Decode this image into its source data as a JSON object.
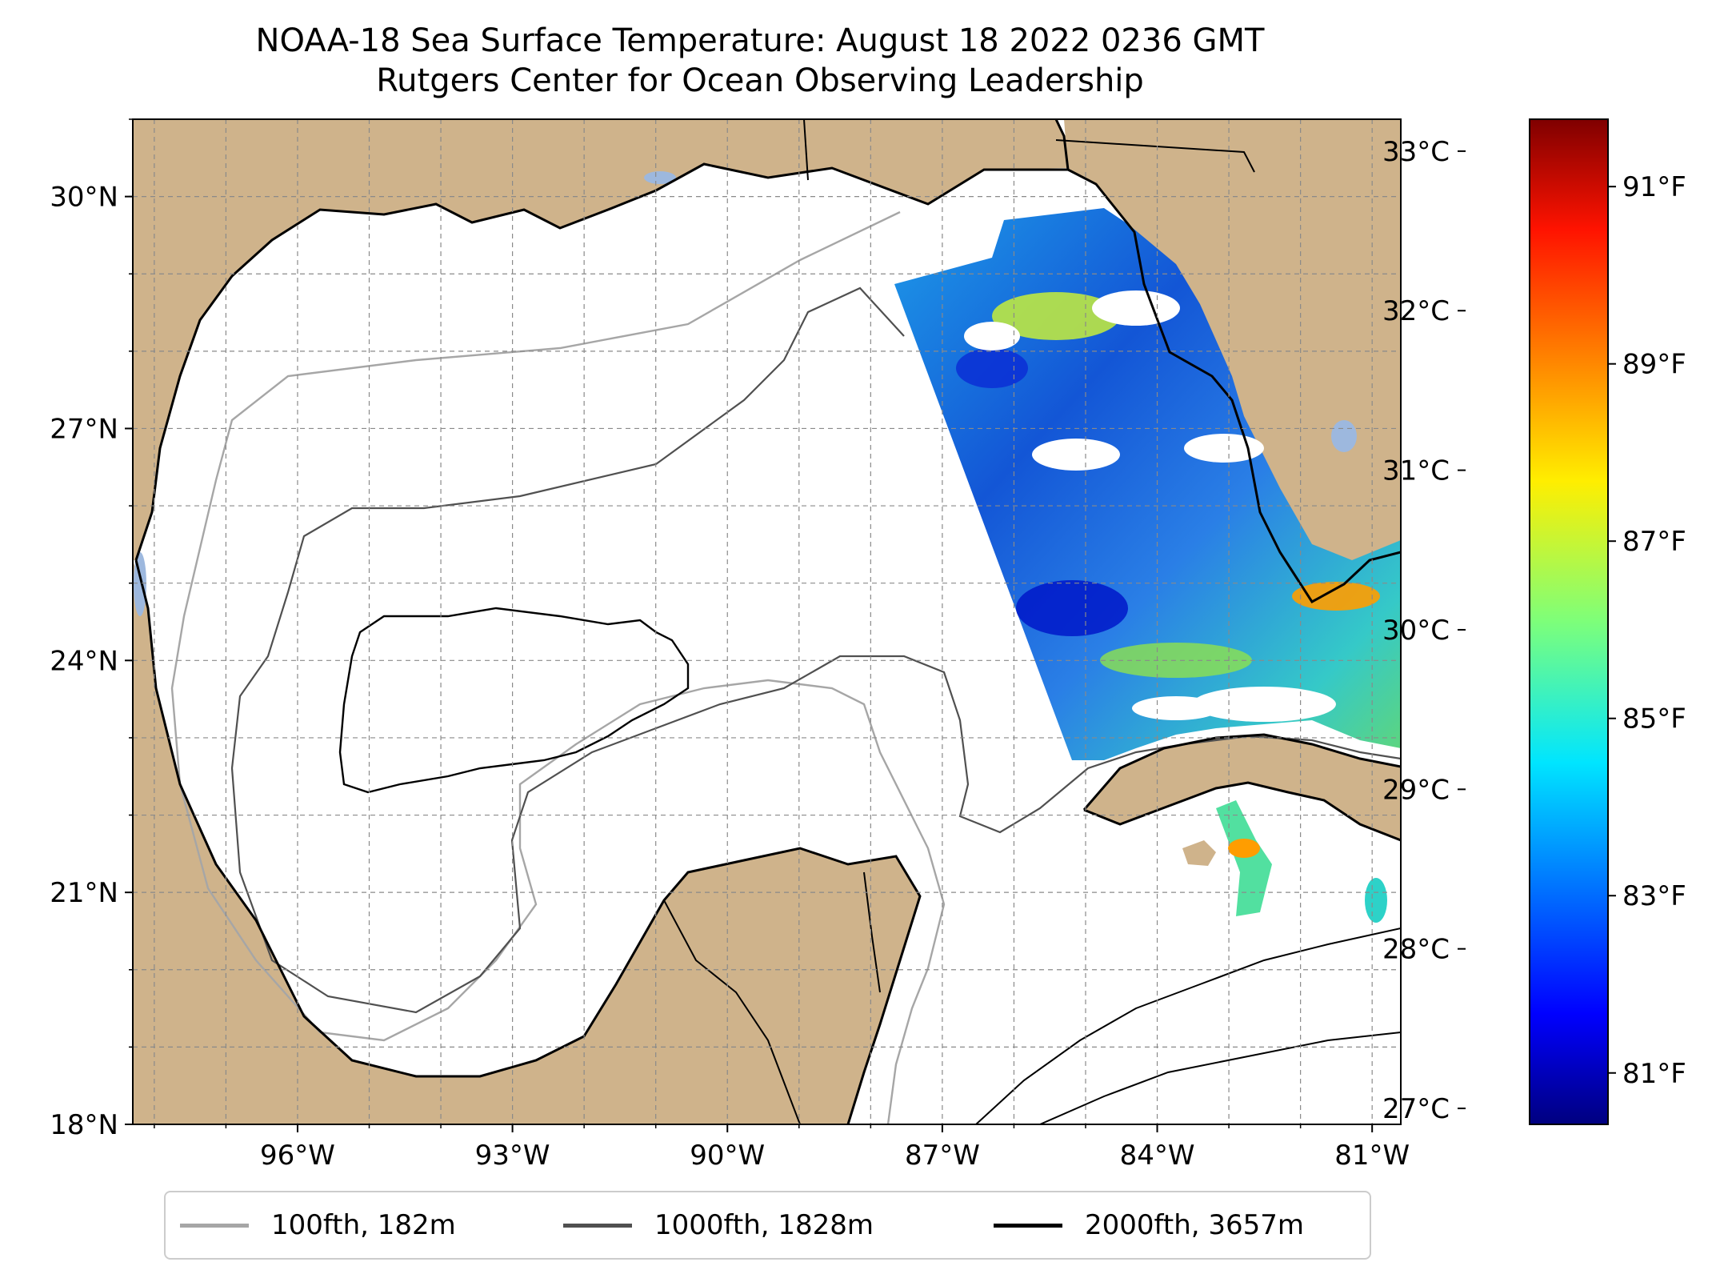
{
  "title": {
    "line1": "NOAA-18 Sea Surface Temperature: August 18 2022 0236 GMT",
    "line2": "Rutgers Center for Ocean Observing Leadership"
  },
  "map": {
    "extent": {
      "lon_min": -98.3,
      "lon_max": -80.6,
      "lat_min": 18.0,
      "lat_max": 31.0
    },
    "lat_ticks": [
      {
        "value": 30,
        "label": "30°N"
      },
      {
        "value": 27,
        "label": "27°N"
      },
      {
        "value": 24,
        "label": "24°N"
      },
      {
        "value": 21,
        "label": "21°N"
      },
      {
        "value": 18,
        "label": "18°N"
      }
    ],
    "lon_ticks": [
      {
        "value": -96,
        "label": "96°W"
      },
      {
        "value": -93,
        "label": "93°W"
      },
      {
        "value": -90,
        "label": "90°W"
      },
      {
        "value": -87,
        "label": "87°W"
      },
      {
        "value": -84,
        "label": "84°W"
      },
      {
        "value": -81,
        "label": "81°W"
      }
    ],
    "gridlines": "dashed, 1° spacing",
    "land_color": "#cfb38b",
    "lake_color": "#9db8de",
    "coastline_color": "#000000"
  },
  "colorbar": {
    "colormap": "jet",
    "celsius_range": [
      26.9,
      33.2
    ],
    "celsius_ticks": [
      {
        "value": 33,
        "label": "33°C"
      },
      {
        "value": 32,
        "label": "32°C"
      },
      {
        "value": 31,
        "label": "31°C"
      },
      {
        "value": 30,
        "label": "30°C"
      },
      {
        "value": 29,
        "label": "29°C"
      },
      {
        "value": 28,
        "label": "28°C"
      },
      {
        "value": 27,
        "label": "27°C"
      }
    ],
    "fahrenheit_ticks": [
      {
        "value": 91,
        "label": "91°F"
      },
      {
        "value": 89,
        "label": "89°F"
      },
      {
        "value": 87,
        "label": "87°F"
      },
      {
        "value": 85,
        "label": "85°F"
      },
      {
        "value": 83,
        "label": "83°F"
      },
      {
        "value": 81,
        "label": "81°F"
      }
    ]
  },
  "legend": {
    "placement": "bottom-center",
    "items": [
      {
        "label": "100fth, 182m",
        "color": "#a6a6a6"
      },
      {
        "label": "1000fth, 1828m",
        "color": "#505050"
      },
      {
        "label": "2000fth, 3657m",
        "color": "#000000"
      }
    ]
  }
}
